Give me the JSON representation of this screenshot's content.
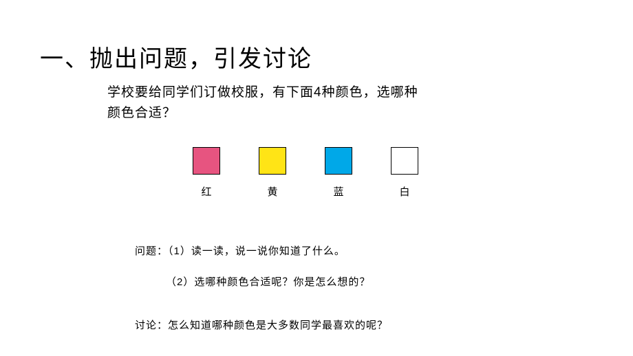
{
  "heading": "一、抛出问题，引发讨论",
  "intro_line1": "学校要给同学们订做校服，有下面4种颜色，选哪种",
  "intro_line2": "颜色合适？",
  "swatches": {
    "items": [
      {
        "label": "红",
        "color": "#e75480"
      },
      {
        "label": "黄",
        "color": "#ffe416"
      },
      {
        "label": "蓝",
        "color": "#00a8e8"
      },
      {
        "label": "白",
        "color": "#ffffff"
      }
    ]
  },
  "q_label": "问题：",
  "q1": "（1）读一读，说一说你知道了什么。",
  "q2": "（2）选哪种颜色合适呢？你是怎么想的？",
  "discussion_label": "讨论：",
  "discussion_text": "怎么知道哪种颜色是大多数同学最喜欢的呢？"
}
